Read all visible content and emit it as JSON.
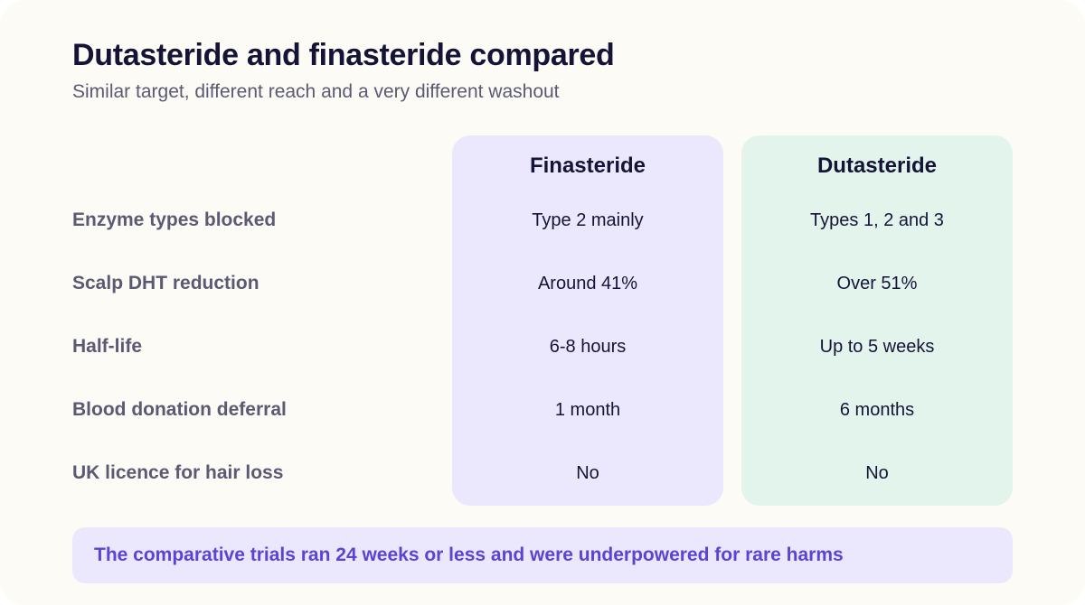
{
  "header": {
    "title": "Dutasteride and finasteride compared",
    "subtitle": "Similar target, different reach and a very different washout"
  },
  "columns": [
    {
      "label": "Finasteride",
      "color": "#ebe8fd"
    },
    {
      "label": "Dutasteride",
      "color": "#e2f4ec"
    }
  ],
  "rows": [
    {
      "label": "Enzyme types blocked",
      "finasteride": "Type 2 mainly",
      "dutasteride": "Types 1, 2 and 3"
    },
    {
      "label": "Scalp DHT reduction",
      "finasteride": "Around 41%",
      "dutasteride": "Over 51%"
    },
    {
      "label": "Half-life",
      "finasteride": "6-8 hours",
      "dutasteride": "Up to 5 weeks"
    },
    {
      "label": "Blood donation deferral",
      "finasteride": "1 month",
      "dutasteride": "6 months"
    },
    {
      "label": "UK licence for hair loss",
      "finasteride": "No",
      "dutasteride": "No"
    }
  ],
  "note": {
    "text": "The comparative trials ran 24 weeks or less and were underpowered for rare harms"
  },
  "colors": {
    "background": "#fdfbf6",
    "title": "#151437",
    "muted": "#5c5a72",
    "accent": "#5b43d6"
  }
}
